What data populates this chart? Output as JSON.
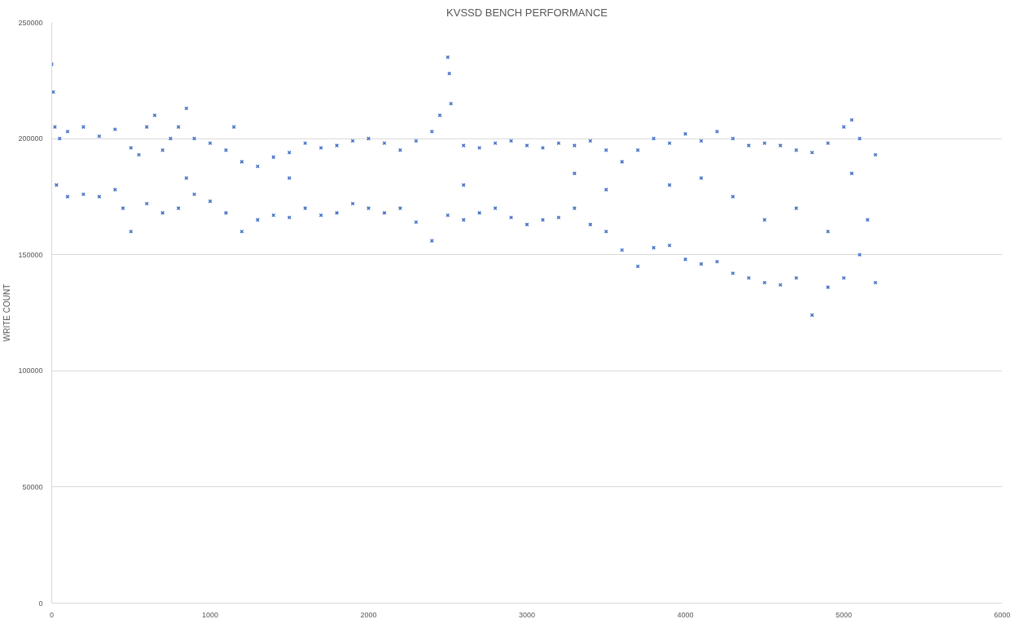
{
  "chart_data": {
    "type": "scatter",
    "title": "KVSSD BENCH PERFORMANCE",
    "ylabel": "WRITE COUNT",
    "marker": "cross",
    "grid": "y",
    "xlim": [
      0,
      6000
    ],
    "xticks": [
      0,
      1000,
      2000,
      3000,
      4000,
      5000,
      6000
    ],
    "ylim": [
      0,
      250000
    ],
    "yticks": [
      0,
      50000,
      100000,
      150000,
      200000,
      250000
    ],
    "series": [
      {
        "color": "#4472c4",
        "x": [
          0,
          10,
          20,
          50,
          100,
          200,
          300,
          400,
          500,
          550,
          600,
          650,
          700,
          750,
          800,
          850,
          900,
          1000,
          1100,
          1150,
          1200,
          1300,
          1400,
          1500,
          1600,
          1700,
          1800,
          1900,
          2000,
          2100,
          2200,
          2300,
          2400,
          2450,
          2500,
          2510,
          2520,
          2600,
          2700,
          2800,
          2900,
          3000,
          3100,
          3200,
          3300,
          3400,
          3500,
          3600,
          3700,
          3800,
          3900,
          4000,
          4100,
          4200,
          4300,
          4400,
          4500,
          4600,
          4700,
          4800,
          4900,
          5000,
          5050,
          5100,
          5200,
          30,
          100,
          200,
          300,
          400,
          450,
          500,
          600,
          700,
          800,
          900,
          1000,
          1100,
          1200,
          1300,
          1400,
          1500,
          1600,
          1700,
          1800,
          1900,
          2000,
          2100,
          2200,
          2300,
          2400,
          2500,
          2600,
          2700,
          2800,
          2900,
          3000,
          3100,
          3200,
          3300,
          3400,
          3500,
          3600,
          3700,
          3800,
          3900,
          4000,
          4100,
          4200,
          4300,
          4400,
          4500,
          4600,
          4700,
          4800,
          4900,
          5000,
          5100,
          5200,
          3300,
          3500,
          3900,
          4100,
          4300,
          4500,
          4700,
          4900,
          5050,
          5150,
          1500,
          2600,
          850
        ],
        "values": [
          232000,
          220000,
          205000,
          200000,
          203000,
          205000,
          201000,
          204000,
          196000,
          193000,
          205000,
          210000,
          195000,
          200000,
          205000,
          213000,
          200000,
          198000,
          195000,
          205000,
          190000,
          188000,
          192000,
          194000,
          198000,
          196000,
          197000,
          199000,
          200000,
          198000,
          195000,
          199000,
          203000,
          210000,
          235000,
          228000,
          215000,
          197000,
          196000,
          198000,
          199000,
          197000,
          196000,
          198000,
          197000,
          199000,
          195000,
          190000,
          195000,
          200000,
          198000,
          202000,
          199000,
          203000,
          200000,
          197000,
          198000,
          197000,
          195000,
          194000,
          198000,
          205000,
          208000,
          200000,
          193000,
          180000,
          175000,
          176000,
          175000,
          178000,
          170000,
          160000,
          172000,
          168000,
          170000,
          176000,
          173000,
          168000,
          160000,
          165000,
          167000,
          166000,
          170000,
          167000,
          168000,
          172000,
          170000,
          168000,
          170000,
          164000,
          156000,
          167000,
          165000,
          168000,
          170000,
          166000,
          163000,
          165000,
          166000,
          170000,
          163000,
          160000,
          152000,
          145000,
          153000,
          154000,
          148000,
          146000,
          147000,
          142000,
          140000,
          138000,
          137000,
          140000,
          124000,
          136000,
          140000,
          150000,
          138000,
          185000,
          178000,
          180000,
          183000,
          175000,
          165000,
          170000,
          160000,
          185000,
          165000,
          183000,
          180000,
          183000
        ]
      }
    ]
  }
}
